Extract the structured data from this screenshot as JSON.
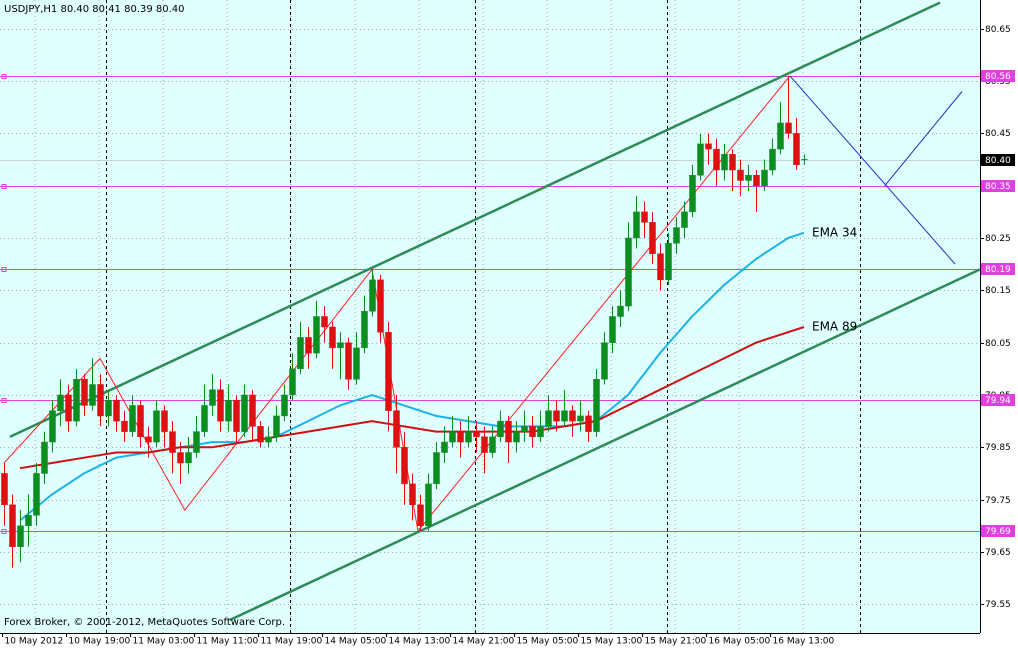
{
  "chart_data": {
    "type": "candlestick",
    "title": "USDJPY,H1  80.40 80.41 80.39 80.40",
    "footer": "Forex Broker, © 2001-2012, MetaQuotes Software Corp.",
    "categories": [
      "10 May 2012",
      null,
      null,
      null,
      null,
      null,
      null,
      null,
      "10 May 19:00",
      null,
      null,
      null,
      null,
      null,
      null,
      null,
      "11 May 03:00",
      null,
      null,
      null,
      null,
      null,
      null,
      null,
      "11 May 11:00",
      null,
      null,
      null,
      null,
      null,
      null,
      null,
      "11 May 19:00",
      null,
      null,
      null,
      null,
      null,
      null,
      null,
      "14 May 05:00",
      null,
      null,
      null,
      null,
      null,
      null,
      null,
      "14 May 13:00",
      null,
      null,
      null,
      null,
      null,
      null,
      null,
      "14 May 21:00",
      null,
      null,
      null,
      null,
      null,
      null,
      null,
      "15 May 05:00",
      null,
      null,
      null,
      null,
      null,
      null,
      null,
      "15 May 13:00",
      null,
      null,
      null,
      null,
      null,
      null,
      null,
      "15 May 21:00",
      null,
      null,
      null,
      null,
      null,
      null,
      null,
      "16 May 05:00",
      null,
      null,
      null,
      null,
      null,
      null,
      null,
      "16 May 13:00",
      null,
      null,
      null,
      null
    ],
    "open": [
      79.8,
      79.74,
      79.66,
      79.7,
      79.72,
      79.8,
      79.86,
      79.92,
      79.95,
      79.9,
      79.98,
      79.93,
      79.97,
      79.91,
      79.94,
      79.9,
      79.88,
      79.93,
      79.87,
      79.86,
      79.92,
      79.88,
      79.84,
      79.82,
      79.84,
      79.88,
      79.93,
      79.96,
      79.9,
      79.94,
      79.88,
      79.95,
      79.89,
      79.86,
      79.87,
      79.91,
      79.95,
      80.0,
      80.06,
      80.03,
      80.1,
      80.08,
      80.04,
      80.05,
      79.98,
      80.04,
      80.11,
      80.17,
      80.07,
      79.92,
      79.85,
      79.78,
      79.74,
      79.7,
      79.78,
      79.84,
      79.86,
      79.88,
      79.86,
      79.88,
      79.87,
      79.84,
      79.87,
      79.9,
      79.86,
      79.88,
      79.89,
      79.87,
      79.89,
      79.92,
      79.9,
      79.92,
      79.9,
      79.91,
      79.88,
      79.98,
      80.05,
      80.1,
      80.12,
      80.25,
      80.3,
      80.28,
      80.22,
      80.17,
      80.24,
      80.27,
      80.3,
      80.37,
      80.43,
      80.42,
      80.38,
      80.41,
      80.38,
      80.36,
      80.37,
      80.35,
      80.38,
      80.42,
      80.47,
      80.45,
      80.4
    ],
    "high": [
      79.82,
      79.76,
      79.73,
      79.76,
      79.82,
      79.88,
      79.94,
      79.98,
      79.97,
      80.0,
      79.99,
      80.02,
      79.99,
      79.96,
      79.95,
      79.92,
      79.95,
      79.94,
      79.89,
      79.94,
      79.93,
      79.9,
      79.86,
      79.87,
      79.91,
      79.97,
      79.99,
      79.98,
      79.97,
      79.95,
      79.97,
      79.96,
      79.9,
      79.89,
      79.93,
      79.97,
      80.03,
      80.09,
      80.08,
      80.13,
      80.12,
      80.09,
      80.07,
      80.06,
      80.07,
      80.14,
      80.19,
      80.18,
      80.09,
      79.95,
      79.88,
      79.8,
      79.76,
      79.8,
      79.86,
      79.89,
      79.91,
      79.9,
      79.91,
      79.9,
      79.89,
      79.89,
      79.92,
      79.91,
      79.9,
      79.92,
      79.91,
      79.92,
      79.95,
      79.94,
      79.96,
      79.93,
      79.94,
      79.92,
      80.0,
      80.07,
      80.12,
      80.15,
      80.28,
      80.33,
      80.32,
      80.3,
      80.24,
      80.26,
      80.29,
      80.32,
      80.39,
      80.45,
      80.45,
      80.44,
      80.43,
      80.42,
      80.4,
      80.39,
      80.38,
      80.4,
      80.44,
      80.51,
      80.56,
      80.48,
      80.41
    ],
    "low": [
      79.7,
      79.62,
      79.63,
      79.66,
      79.7,
      79.78,
      79.84,
      79.89,
      79.88,
      79.89,
      79.91,
      79.92,
      79.89,
      79.89,
      79.88,
      79.86,
      79.87,
      79.85,
      79.83,
      79.85,
      79.85,
      79.8,
      79.78,
      79.8,
      79.83,
      79.87,
      79.91,
      79.88,
      79.88,
      79.86,
      79.87,
      79.86,
      79.85,
      79.85,
      79.86,
      79.9,
      79.94,
      79.99,
      80.0,
      80.02,
      80.05,
      80.0,
      79.98,
      79.96,
      79.97,
      80.03,
      80.1,
      80.05,
      79.88,
      79.8,
      79.74,
      79.71,
      79.69,
      79.69,
      79.77,
      79.82,
      79.85,
      79.83,
      79.85,
      79.84,
      79.8,
      79.83,
      79.86,
      79.82,
      79.84,
      79.86,
      79.85,
      79.86,
      79.88,
      79.88,
      79.89,
      79.87,
      79.88,
      79.86,
      79.87,
      79.97,
      80.03,
      80.08,
      80.11,
      80.23,
      80.25,
      80.2,
      80.15,
      80.16,
      80.22,
      80.25,
      80.29,
      80.36,
      80.39,
      80.35,
      80.36,
      80.34,
      80.33,
      80.34,
      80.3,
      80.34,
      80.37,
      80.41,
      80.44,
      80.38,
      80.39
    ],
    "close": [
      79.74,
      79.66,
      79.7,
      79.72,
      79.8,
      79.86,
      79.92,
      79.95,
      79.9,
      79.98,
      79.93,
      79.97,
      79.91,
      79.94,
      79.9,
      79.88,
      79.93,
      79.87,
      79.86,
      79.92,
      79.88,
      79.84,
      79.82,
      79.84,
      79.88,
      79.93,
      79.96,
      79.9,
      79.94,
      79.88,
      79.95,
      79.89,
      79.86,
      79.87,
      79.91,
      79.95,
      80.0,
      80.06,
      80.03,
      80.1,
      80.08,
      80.04,
      80.05,
      79.98,
      80.04,
      80.11,
      80.17,
      80.07,
      79.92,
      79.85,
      79.78,
      79.74,
      79.7,
      79.78,
      79.84,
      79.86,
      79.88,
      79.86,
      79.88,
      79.87,
      79.84,
      79.87,
      79.9,
      79.86,
      79.88,
      79.89,
      79.87,
      79.89,
      79.92,
      79.9,
      79.92,
      79.9,
      79.91,
      79.88,
      79.98,
      80.05,
      80.1,
      80.12,
      80.25,
      80.3,
      80.28,
      80.22,
      80.17,
      80.24,
      80.27,
      80.3,
      80.37,
      80.43,
      80.42,
      80.38,
      80.41,
      80.38,
      80.36,
      80.37,
      80.35,
      80.38,
      80.42,
      80.47,
      80.45,
      80.39,
      80.4
    ],
    "up_color": "#0a8f1f",
    "down_color": "#e01010",
    "ylim": [
      79.495,
      80.705
    ],
    "yticks": [
      80.65,
      80.55,
      80.45,
      80.35,
      80.25,
      80.15,
      80.05,
      79.95,
      79.85,
      79.75,
      79.65,
      79.55
    ],
    "grid": true,
    "series": [
      {
        "name": "EMA 34",
        "color": "#1ab2e8",
        "x": [
          2,
          6,
          10,
          14,
          18,
          22,
          26,
          30,
          34,
          38,
          42,
          46,
          50,
          54,
          58,
          62,
          66,
          70,
          74,
          78,
          82,
          86,
          90,
          94,
          98,
          100
        ],
        "values": [
          79.71,
          79.76,
          79.8,
          79.83,
          79.84,
          79.85,
          79.86,
          79.86,
          79.87,
          79.9,
          79.93,
          79.95,
          79.93,
          79.91,
          79.9,
          79.89,
          79.89,
          79.89,
          79.9,
          79.95,
          80.03,
          80.1,
          80.16,
          80.21,
          80.25,
          80.26
        ]
      },
      {
        "name": "EMA 89",
        "color": "#d01010",
        "x": [
          2,
          6,
          10,
          14,
          18,
          22,
          26,
          30,
          34,
          38,
          42,
          46,
          50,
          54,
          58,
          62,
          66,
          70,
          74,
          78,
          82,
          86,
          90,
          94,
          98,
          100
        ],
        "values": [
          79.81,
          79.82,
          79.83,
          79.84,
          79.84,
          79.85,
          79.85,
          79.86,
          79.87,
          79.88,
          79.89,
          79.9,
          79.89,
          79.88,
          79.88,
          79.88,
          79.88,
          79.89,
          79.9,
          79.93,
          79.96,
          79.99,
          80.02,
          80.05,
          80.07,
          80.08
        ]
      }
    ],
    "zigzag": {
      "color": "#ff2020",
      "x": [
        0,
        12,
        22.6,
        46,
        51.75,
        98.25
      ],
      "values": [
        79.82,
        80.02,
        79.73,
        80.19,
        79.69,
        80.56
      ]
    },
    "trendlines": [
      {
        "color": "#2e8b57",
        "x": [
          0.75,
          117
        ],
        "values": [
          79.87,
          80.7
        ]
      },
      {
        "color": "#2e8b57",
        "x": [
          28.25,
          122
        ],
        "values": [
          79.52,
          80.19
        ]
      },
      {
        "color": "#2030c0",
        "x": [
          98.25,
          118.9
        ],
        "values": [
          80.56,
          80.2
        ]
      },
      {
        "color": "#2030c0",
        "x": [
          110.1,
          119.75
        ],
        "values": [
          80.35,
          80.53
        ]
      }
    ],
    "levels": [
      80.56,
      80.35,
      80.19,
      79.94,
      79.69
    ],
    "level_color": "#e040e0",
    "current_price": {
      "value": 80.4,
      "label": "80.40"
    }
  }
}
